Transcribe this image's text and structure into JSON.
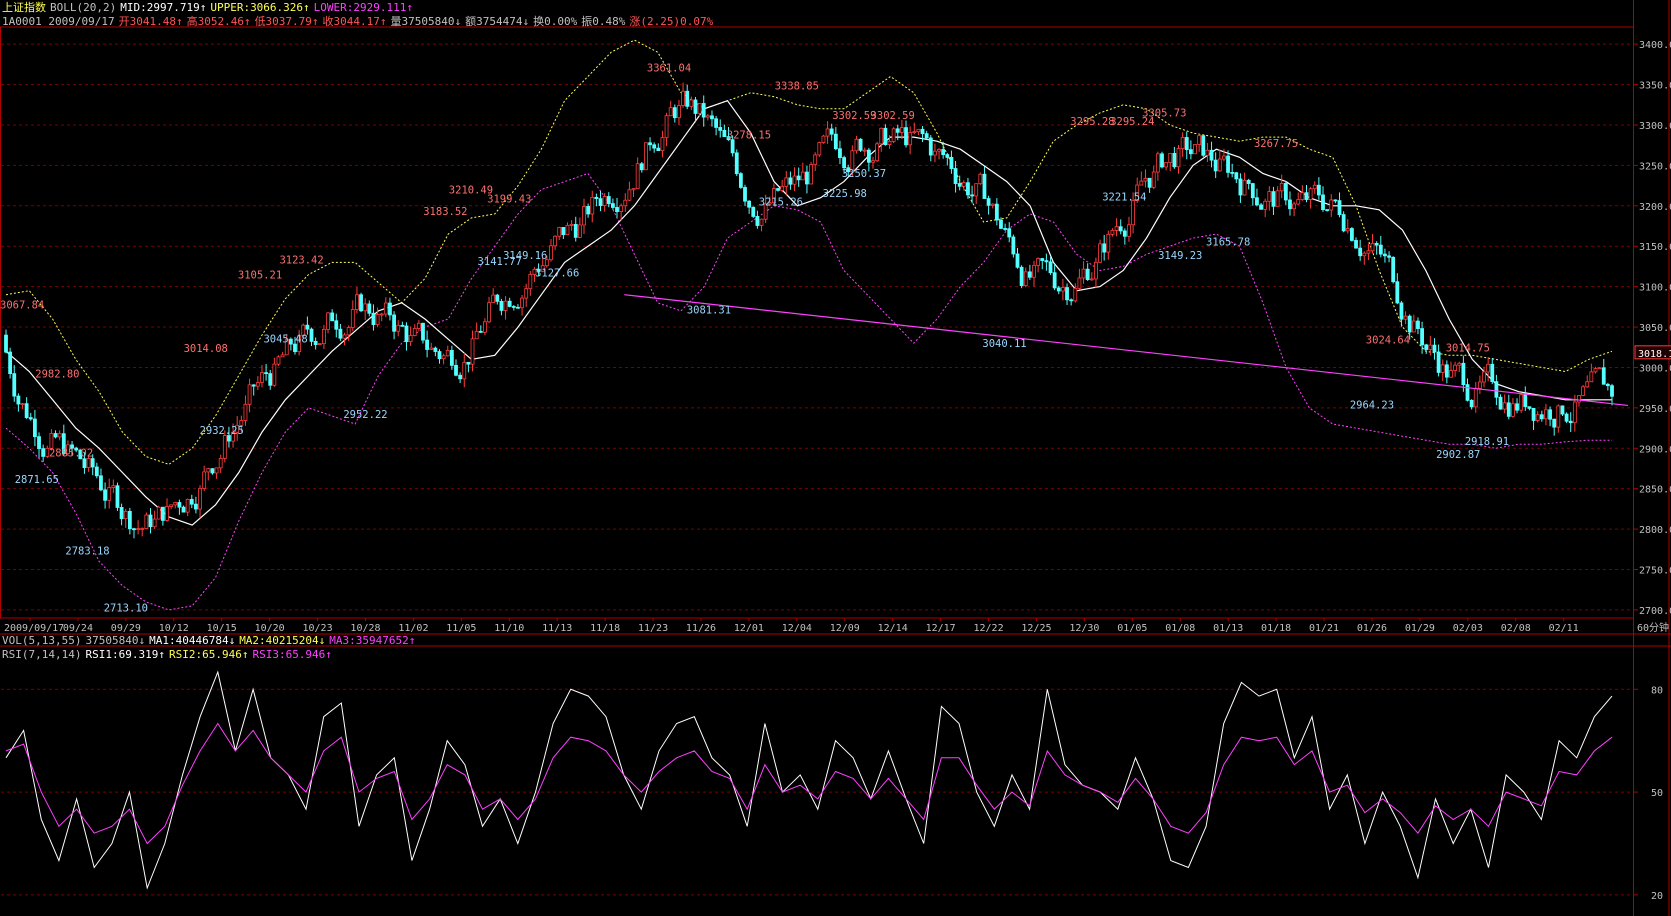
{
  "header": {
    "line1": {
      "index_name": "上证指数",
      "indicator": "BOLL(20,2)",
      "mid": "MID:2997.719↑",
      "upper": "UPPER:3066.326↑",
      "lower": "LOWER:2929.111↑"
    },
    "line2": {
      "code_date": "1A0001 2009/09/17",
      "open": "开3041.48↑",
      "high": "高3052.46↑",
      "low": "低3037.79↑",
      "close": "收3044.17↑",
      "vol": "量37505840↓",
      "amount": "额3754474↓",
      "turnover": "换0.00%",
      "amplitude": "振0.48%",
      "change": "涨(2.25)0.07%"
    },
    "vol_line": {
      "name": "VOL(5,13,55)",
      "vol": "37505840↓",
      "ma1": "MA1:40446784↓",
      "ma2": "MA2:40215204↓",
      "ma3": "MA3:35947652↑"
    },
    "rsi_line": {
      "name": "RSI(7,14,14)",
      "rsi1": "RSI1:69.319↑",
      "rsi2": "RSI2:65.946↑",
      "rsi3": "RSI3:65.946↑"
    }
  },
  "colors": {
    "background": "#000000",
    "up_candle": "#ff3c3c",
    "down_candle": "#54ffff",
    "mid_line": "#ffffff",
    "upper_band": "#ffff55",
    "lower_band": "#ff40ff",
    "trendline": "#ff40ff",
    "high_label": "#ff7070",
    "low_label": "#9ad6ff",
    "grid": "#7a0000",
    "border": "#b00000",
    "axis_text": "#c0c0c0",
    "current_price_bg": "#ff3c3c",
    "rsi1": "#ffffff",
    "rsi2": "#ff40ff"
  },
  "chart_data": [
    {
      "type": "candlestick",
      "bands": "BOLL(20,2)",
      "x_ticks": [
        "2009/09/17",
        "09/24",
        "09/29",
        "10/12",
        "10/15",
        "10/20",
        "10/23",
        "10/28",
        "11/02",
        "11/05",
        "11/10",
        "11/13",
        "11/18",
        "11/23",
        "11/26",
        "12/01",
        "12/04",
        "12/09",
        "12/14",
        "12/17",
        "12/22",
        "12/25",
        "12/30",
        "01/05",
        "01/08",
        "01/13",
        "01/18",
        "01/21",
        "01/26",
        "01/29",
        "02/03",
        "02/08",
        "02/11"
      ],
      "x_unit": "60分钟",
      "y_ticks": [
        "3400.00",
        "3350.00",
        "3300.00",
        "3250.00",
        "3200.00",
        "3150.00",
        "3100.00",
        "3050.00",
        "3000.00",
        "2950.00",
        "2900.00",
        "2850.00",
        "2800.00",
        "2750.00",
        "2700.00"
      ],
      "ylim": [
        2690,
        3420
      ],
      "current_price": "3018.1",
      "highs": [
        {
          "label": "3067.84",
          "date": "09/17",
          "value": 3067.84
        },
        {
          "label": "2982.80",
          "date": "09/21",
          "value": 2982.8
        },
        {
          "label": "2885.02",
          "date": "09/23",
          "value": 2885.02
        },
        {
          "label": "3014.08",
          "date": "10/14",
          "value": 3014.08
        },
        {
          "label": "3105.21",
          "date": "10/19",
          "value": 3105.21
        },
        {
          "label": "3123.42",
          "date": "10/22",
          "value": 3123.42
        },
        {
          "label": "3183.52",
          "date": "11/04",
          "value": 3183.52
        },
        {
          "label": "3210.49",
          "date": "11/06",
          "value": 3210.49
        },
        {
          "label": "3199.43",
          "date": "11/10",
          "value": 3199.43
        },
        {
          "label": "3361.04",
          "date": "11/24",
          "value": 3361.04
        },
        {
          "label": "3278.15",
          "date": "12/01",
          "value": 3278.15
        },
        {
          "label": "3338.85",
          "date": "12/04",
          "value": 3338.85
        },
        {
          "label": "3302.59",
          "date": "12/10",
          "value": 3302.59
        },
        {
          "label": "3302.59",
          "date": "12/14",
          "value": 3302.59
        },
        {
          "label": "3295.28",
          "date": "12/31",
          "value": 3295.28
        },
        {
          "label": "3295.24",
          "date": "01/05",
          "value": 3295.24
        },
        {
          "label": "3305.73",
          "date": "01/07",
          "value": 3305.73
        },
        {
          "label": "3267.75",
          "date": "01/18",
          "value": 3267.75
        },
        {
          "label": "3024.64",
          "date": "01/27",
          "value": 3024.64
        },
        {
          "label": "3014.75",
          "date": "02/03",
          "value": 3014.75
        }
      ],
      "lows": [
        {
          "label": "2871.65",
          "date": "09/18",
          "value": 2871.65
        },
        {
          "label": "2783.18",
          "date": "09/25",
          "value": 2783.18
        },
        {
          "label": "2713.10",
          "date": "09/29",
          "value": 2713.1
        },
        {
          "label": "2932.25",
          "date": "10/15",
          "value": 2932.25
        },
        {
          "label": "3045.48",
          "date": "10/21",
          "value": 3045.48
        },
        {
          "label": "2952.22",
          "date": "10/28",
          "value": 2952.22
        },
        {
          "label": "3141.77",
          "date": "11/09",
          "value": 3141.77
        },
        {
          "label": "3149.16",
          "date": "11/11",
          "value": 3149.16
        },
        {
          "label": "3127.66",
          "date": "11/13",
          "value": 3127.66
        },
        {
          "label": "3081.31",
          "date": "11/27",
          "value": 3081.31
        },
        {
          "label": "3215.26",
          "date": "12/03",
          "value": 3215.26
        },
        {
          "label": "3225.98",
          "date": "12/09",
          "value": 3225.98
        },
        {
          "label": "3250.37",
          "date": "12/11",
          "value": 3250.37
        },
        {
          "label": "3221.54",
          "date": "01/04",
          "value": 3221.54
        },
        {
          "label": "3040.11",
          "date": "12/23",
          "value": 3040.11
        },
        {
          "label": "3149.23",
          "date": "01/08",
          "value": 3149.23
        },
        {
          "label": "3165.78",
          "date": "01/13",
          "value": 3165.78
        },
        {
          "label": "2964.23",
          "date": "01/26",
          "value": 2964.23
        },
        {
          "label": "2902.87",
          "date": "02/02",
          "value": 2902.87
        },
        {
          "label": "2918.91",
          "date": "02/05",
          "value": 2918.91
        }
      ],
      "boll_mid": [
        3020,
        2995,
        2960,
        2925,
        2900,
        2870,
        2840,
        2815,
        2805,
        2830,
        2870,
        2920,
        2960,
        2990,
        3020,
        3045,
        3070,
        3080,
        3060,
        3035,
        3010,
        3015,
        3050,
        3090,
        3130,
        3150,
        3170,
        3200,
        3240,
        3280,
        3320,
        3330,
        3290,
        3230,
        3200,
        3210,
        3230,
        3260,
        3285,
        3285,
        3280,
        3270,
        3250,
        3230,
        3200,
        3130,
        3095,
        3100,
        3120,
        3160,
        3210,
        3250,
        3270,
        3260,
        3240,
        3230,
        3210,
        3200,
        3200,
        3195,
        3170,
        3120,
        3060,
        3010,
        2980,
        2970,
        2965,
        2960,
        2960,
        2960
      ],
      "boll_upper": [
        3090,
        3095,
        3060,
        3010,
        2970,
        2920,
        2890,
        2880,
        2900,
        2940,
        2990,
        3040,
        3085,
        3115,
        3130,
        3130,
        3105,
        3080,
        3110,
        3165,
        3185,
        3190,
        3225,
        3270,
        3330,
        3360,
        3390,
        3405,
        3390,
        3340,
        3320,
        3330,
        3340,
        3335,
        3325,
        3320,
        3320,
        3340,
        3360,
        3340,
        3290,
        3230,
        3180,
        3185,
        3230,
        3280,
        3300,
        3315,
        3325,
        3320,
        3300,
        3290,
        3285,
        3280,
        3285,
        3285,
        3270,
        3260,
        3200,
        3120,
        3050,
        3020,
        3015,
        3015,
        3010,
        3005,
        3000,
        2995,
        3010,
        3020
      ],
      "boll_lower": [
        2925,
        2900,
        2870,
        2820,
        2760,
        2730,
        2710,
        2700,
        2705,
        2740,
        2810,
        2870,
        2920,
        2950,
        2940,
        2930,
        2990,
        3030,
        3050,
        3060,
        3110,
        3150,
        3190,
        3220,
        3230,
        3240,
        3200,
        3140,
        3080,
        3070,
        3100,
        3160,
        3180,
        3200,
        3195,
        3180,
        3120,
        3090,
        3060,
        3030,
        3060,
        3100,
        3130,
        3170,
        3190,
        3180,
        3140,
        3120,
        3125,
        3140,
        3150,
        3160,
        3165,
        3150,
        3080,
        3000,
        2950,
        2930,
        2925,
        2920,
        2915,
        2910,
        2905,
        2905,
        2900,
        2905,
        2905,
        2908,
        2910,
        2910
      ],
      "trendline": {
        "start": {
          "date": "11/20",
          "value": 3090
        },
        "end": {
          "date": "02/11",
          "value": 2953
        }
      }
    },
    {
      "type": "line",
      "name": "RSI(7,14,14)",
      "y_ticks": [
        "80",
        "50",
        "20"
      ],
      "ylim": [
        15,
        90
      ],
      "series": [
        {
          "name": "RSI1",
          "values": [
            60,
            68,
            42,
            30,
            48,
            28,
            35,
            50,
            22,
            35,
            55,
            72,
            85,
            62,
            80,
            60,
            55,
            45,
            72,
            76,
            40,
            55,
            60,
            30,
            45,
            65,
            58,
            40,
            48,
            35,
            50,
            70,
            80,
            78,
            72,
            55,
            45,
            62,
            70,
            72,
            60,
            55,
            40,
            70,
            50,
            55,
            45,
            65,
            60,
            48,
            62,
            48,
            35,
            75,
            70,
            50,
            40,
            55,
            45,
            80,
            58,
            52,
            50,
            45,
            60,
            48,
            30,
            28,
            40,
            70,
            82,
            78,
            80,
            60,
            72,
            45,
            55,
            35,
            50,
            40,
            25,
            48,
            35,
            45,
            28,
            55,
            50,
            42,
            65,
            60,
            72,
            78
          ]
        },
        {
          "name": "RSI2",
          "values": [
            62,
            64,
            50,
            40,
            45,
            38,
            40,
            45,
            35,
            40,
            52,
            62,
            70,
            62,
            68,
            60,
            55,
            50,
            62,
            66,
            50,
            54,
            56,
            42,
            48,
            58,
            55,
            45,
            48,
            42,
            48,
            60,
            66,
            65,
            62,
            55,
            50,
            56,
            60,
            62,
            56,
            54,
            45,
            58,
            50,
            52,
            48,
            56,
            54,
            48,
            54,
            48,
            42,
            60,
            60,
            52,
            45,
            50,
            46,
            62,
            55,
            52,
            50,
            47,
            54,
            48,
            40,
            38,
            44,
            58,
            66,
            65,
            66,
            58,
            62,
            50,
            52,
            44,
            48,
            44,
            38,
            46,
            42,
            45,
            40,
            50,
            48,
            46,
            56,
            55,
            62,
            66
          ]
        }
      ]
    }
  ]
}
